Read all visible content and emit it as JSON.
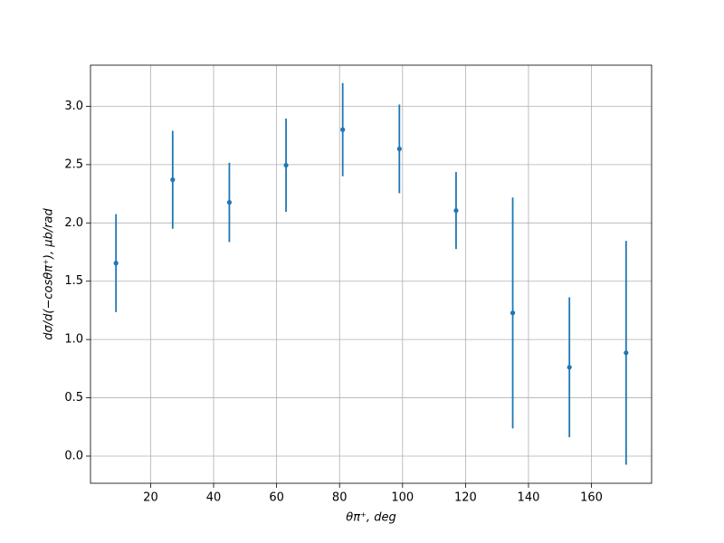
{
  "chart_data": {
    "type": "errorbar",
    "xlabel": "θπ⁺, deg",
    "ylabel": "dσ/d(−cosθπ⁺), μb/rad",
    "series": [
      {
        "color": "#1f77b4",
        "x": [
          9,
          27,
          45,
          63,
          81,
          99,
          117,
          135,
          153,
          171
        ],
        "values": [
          1.655,
          2.37,
          2.176,
          2.495,
          2.8,
          2.635,
          2.106,
          1.228,
          0.762,
          0.886
        ],
        "errors": [
          0.42,
          0.42,
          0.34,
          0.4,
          0.4,
          0.38,
          0.33,
          0.99,
          0.6,
          0.96
        ]
      }
    ],
    "xlim": [
      0.9,
      179.1
    ],
    "ylim": [
      -0.233,
      3.353
    ],
    "xticks": [
      20,
      40,
      60,
      80,
      100,
      120,
      140,
      160
    ],
    "yticks": [
      {
        "value": 0,
        "label": "0.0"
      },
      0.5,
      {
        "value": 1,
        "label": "1.0"
      },
      1.5,
      {
        "value": 2,
        "label": "2.0"
      },
      2.5,
      {
        "value": 3,
        "label": "3.0"
      }
    ],
    "grid": true
  }
}
